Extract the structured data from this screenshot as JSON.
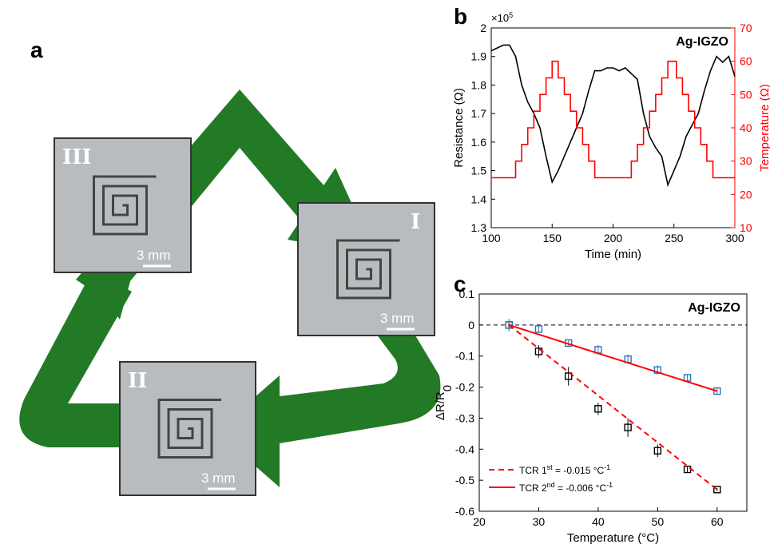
{
  "figure": {
    "panel_labels": [
      "a",
      "b",
      "c"
    ],
    "photos": [
      {
        "label": "III",
        "scale": "3 mm"
      },
      {
        "label": "I",
        "scale": "3 mm"
      },
      {
        "label": "II",
        "scale": "3 mm"
      }
    ]
  },
  "chart_data": [
    {
      "type": "line",
      "annotation": "Ag-IGZO",
      "x_label": "Time (min)",
      "y_label": "Resistance (Ω)",
      "y2_label": "Temperature (Ω)",
      "y_multiplier": [
        "×10",
        "5"
      ],
      "xlim": [
        100,
        300
      ],
      "xticks": [
        100,
        150,
        200,
        250,
        300
      ],
      "ylim": [
        1.3,
        2
      ],
      "yticks": [
        1.3,
        1.4,
        1.5,
        1.6,
        1.7,
        1.8,
        1.9,
        2
      ],
      "y2lim": [
        10,
        70
      ],
      "y2ticks": [
        10,
        20,
        30,
        40,
        50,
        60,
        70
      ],
      "series": [
        {
          "color": "#000000",
          "x": [
            100,
            105,
            110,
            115,
            120,
            125,
            130,
            135,
            140,
            145,
            150,
            155,
            160,
            165,
            170,
            175,
            180,
            185,
            190,
            195,
            200,
            205,
            210,
            215,
            220,
            225,
            230,
            235,
            240,
            245,
            250,
            255,
            260,
            265,
            270,
            275,
            280,
            285,
            290,
            295,
            300
          ],
          "values": [
            1.92,
            1.93,
            1.94,
            1.94,
            1.9,
            1.8,
            1.74,
            1.7,
            1.65,
            1.55,
            1.46,
            1.5,
            1.55,
            1.6,
            1.65,
            1.7,
            1.78,
            1.85,
            1.85,
            1.86,
            1.86,
            1.85,
            1.86,
            1.84,
            1.82,
            1.7,
            1.62,
            1.58,
            1.55,
            1.45,
            1.5,
            1.55,
            1.62,
            1.66,
            1.7,
            1.78,
            1.85,
            1.9,
            1.88,
            1.9,
            1.83
          ]
        },
        {
          "color": "#ff0000",
          "axis": "y2",
          "step": true,
          "x": [
            100,
            120,
            125,
            130,
            135,
            140,
            145,
            150,
            155,
            160,
            165,
            170,
            175,
            180,
            185,
            215,
            220,
            225,
            230,
            235,
            240,
            245,
            252,
            257,
            262,
            267,
            272,
            277,
            282,
            300
          ],
          "values": [
            25,
            30,
            35,
            40,
            45,
            50,
            55,
            60,
            55,
            50,
            45,
            40,
            35,
            30,
            25,
            30,
            35,
            40,
            45,
            50,
            55,
            60,
            55,
            50,
            45,
            40,
            35,
            30,
            25,
            25
          ]
        }
      ]
    },
    {
      "type": "scatter",
      "annotation": "Ag-IGZO",
      "x_label": "Temperature (°C)",
      "y_label": [
        "ΔR/R",
        "0"
      ],
      "zero_line": true,
      "xlim": [
        20,
        65
      ],
      "xticks": [
        20,
        30,
        40,
        50,
        60
      ],
      "ylim": [
        -0.6,
        0.1
      ],
      "yticks": [
        -0.6,
        -0.5,
        -0.4,
        -0.3,
        -0.2,
        -0.1,
        0,
        0.1
      ],
      "series": [
        {
          "kind": "markers",
          "color": "#000000",
          "x": [
            25,
            30,
            35,
            40,
            45,
            50,
            55,
            60
          ],
          "values": [
            0,
            -0.085,
            -0.165,
            -0.27,
            -0.33,
            -0.405,
            -0.465,
            -0.53
          ],
          "errors": [
            0.01,
            0.02,
            0.03,
            0.02,
            0.03,
            0.02,
            0.01,
            0.005
          ]
        },
        {
          "kind": "markers",
          "color": "#2e75b6",
          "x": [
            25,
            30,
            35,
            40,
            45,
            50,
            55,
            60
          ],
          "values": [
            0,
            -0.013,
            -0.058,
            -0.08,
            -0.11,
            -0.145,
            -0.17,
            -0.213
          ],
          "errors": [
            0.02,
            0.01,
            0.008,
            0.015,
            0.015,
            0.015,
            0.01,
            0.012
          ]
        },
        {
          "kind": "fit",
          "dashed": true,
          "color": "#ff0000",
          "x": [
            25,
            60
          ],
          "values": [
            0,
            -0.53
          ],
          "name_parts": [
            {
              "text": "TCR 1"
            },
            {
              "text": "st",
              "sup": true
            },
            {
              "text": " = -0.015 °C"
            },
            {
              "text": "-1",
              "sup": true
            }
          ]
        },
        {
          "kind": "fit",
          "dashed": false,
          "color": "#ff0000",
          "x": [
            25,
            60
          ],
          "values": [
            0,
            -0.213
          ],
          "name_parts": [
            {
              "text": "TCR 2"
            },
            {
              "text": "nd",
              "sup": true
            },
            {
              "text": " = -0.006 °C"
            },
            {
              "text": "-1",
              "sup": true
            }
          ]
        }
      ]
    }
  ]
}
